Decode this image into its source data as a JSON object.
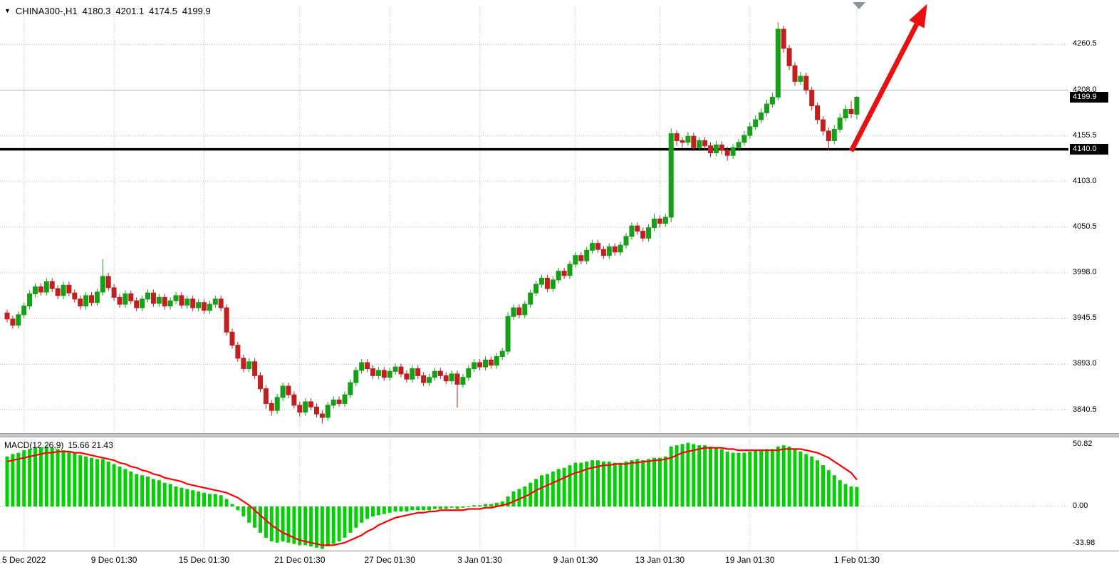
{
  "header": {
    "symbol_timeframe": "CHINA300-,H1",
    "open": "4180.3",
    "high": "4201.1",
    "low": "4174.5",
    "close": "4199.9"
  },
  "macd_panel": {
    "name": "MACD(12,26,9)",
    "values": "15.66 21.43"
  },
  "price_axis": {
    "current_price_badge": "4199.9",
    "line_badge": "4140.0"
  },
  "colors": {
    "bull": "#15a015",
    "bear": "#c21f1f",
    "macd_histogram": "#00cf00",
    "macd_signal": "#ff0000",
    "hline": "#000000",
    "resistance_line": "#9fb6c4",
    "grid": "#bdbdbd",
    "badge_bg": "#000000",
    "badge_text": "#ffffff",
    "arrow": "#e81010",
    "shift_marker": "#8795a5"
  },
  "chart_data": {
    "type": "candlestick",
    "title": "CHINA300-,H1",
    "ylim": [
      3814,
      4305
    ],
    "grid": "dotted",
    "horizontal_line": 4140.0,
    "resistance_line": 4208.0,
    "last_bar": {
      "open": 4180.3,
      "high": 4201.1,
      "low": 4174.5,
      "close": 4199.9
    },
    "y_ticks": [
      {
        "value": 4260.5,
        "label": "4260.5"
      },
      {
        "value": 4208.0,
        "label": "4208.0"
      },
      {
        "value": 4155.5,
        "label": "4155.5"
      },
      {
        "value": 4103.0,
        "label": "4103.0"
      },
      {
        "value": 4050.5,
        "label": "4050.5"
      },
      {
        "value": 3998.0,
        "label": "3998.0"
      },
      {
        "value": 3945.5,
        "label": "3945.5"
      },
      {
        "value": 3893.0,
        "label": "3893.0"
      },
      {
        "value": 3840.5,
        "label": "3840.5"
      }
    ],
    "x_ticks": [
      {
        "index": 3,
        "label": "5 Dec 2022"
      },
      {
        "index": 19,
        "label": "9 Dec 01:30"
      },
      {
        "index": 35,
        "label": "15 Dec 01:30"
      },
      {
        "index": 52,
        "label": "21 Dec 01:30"
      },
      {
        "index": 68,
        "label": "27 Dec 01:30"
      },
      {
        "index": 84,
        "label": "3 Jan 01:30"
      },
      {
        "index": 101,
        "label": "9 Jan 01:30"
      },
      {
        "index": 116,
        "label": "13 Jan 01:30"
      },
      {
        "index": 132,
        "label": "19 Jan 01:30"
      },
      {
        "index": 151,
        "label": "1 Feb 01:30"
      }
    ],
    "candles": [
      [
        3952,
        3956,
        3941,
        3945
      ],
      [
        3945,
        3949,
        3934,
        3938
      ],
      [
        3938,
        3954,
        3934,
        3950
      ],
      [
        3950,
        3964,
        3946,
        3960
      ],
      [
        3960,
        3978,
        3956,
        3974
      ],
      [
        3974,
        3986,
        3970,
        3982
      ],
      [
        3982,
        3986,
        3972,
        3976
      ],
      [
        3976,
        3992,
        3972,
        3988
      ],
      [
        3988,
        3992,
        3976,
        3980
      ],
      [
        3980,
        3984,
        3968,
        3972
      ],
      [
        3972,
        3988,
        3968,
        3984
      ],
      [
        3984,
        3988,
        3971,
        3975
      ],
      [
        3975,
        3979,
        3964,
        3968
      ],
      [
        3968,
        3972,
        3956,
        3960
      ],
      [
        3960,
        3976,
        3956,
        3972
      ],
      [
        3972,
        3976,
        3960,
        3964
      ],
      [
        3964,
        3980,
        3960,
        3976
      ],
      [
        3976,
        4014,
        3972,
        3994
      ],
      [
        3994,
        3998,
        3977,
        3981
      ],
      [
        3981,
        3985,
        3966,
        3970
      ],
      [
        3970,
        3974,
        3958,
        3962
      ],
      [
        3962,
        3978,
        3958,
        3974
      ],
      [
        3974,
        3978,
        3962,
        3966
      ],
      [
        3966,
        3970,
        3954,
        3958
      ],
      [
        3958,
        3972,
        3954,
        3968
      ],
      [
        3968,
        3979,
        3964,
        3975
      ],
      [
        3975,
        3979,
        3959,
        3963
      ],
      [
        3963,
        3974,
        3959,
        3970
      ],
      [
        3970,
        3974,
        3956,
        3960
      ],
      [
        3960,
        3970,
        3956,
        3966
      ],
      [
        3966,
        3976,
        3962,
        3972
      ],
      [
        3972,
        3976,
        3957,
        3961
      ],
      [
        3961,
        3972,
        3957,
        3968
      ],
      [
        3968,
        3972,
        3954,
        3958
      ],
      [
        3958,
        3968,
        3954,
        3964
      ],
      [
        3964,
        3968,
        3951,
        3955
      ],
      [
        3955,
        3966,
        3951,
        3962
      ],
      [
        3962,
        3972,
        3958,
        3968
      ],
      [
        3968,
        3972,
        3954,
        3958
      ],
      [
        3958,
        3962,
        3926,
        3930
      ],
      [
        3930,
        3934,
        3911,
        3915
      ],
      [
        3915,
        3919,
        3896,
        3900
      ],
      [
        3900,
        3904,
        3884,
        3888
      ],
      [
        3888,
        3900,
        3884,
        3896
      ],
      [
        3896,
        3900,
        3876,
        3880
      ],
      [
        3880,
        3884,
        3861,
        3865
      ],
      [
        3865,
        3869,
        3842,
        3848
      ],
      [
        3848,
        3852,
        3834,
        3840
      ],
      [
        3840,
        3859,
        3836,
        3855
      ],
      [
        3855,
        3872,
        3851,
        3868
      ],
      [
        3868,
        3872,
        3854,
        3858
      ],
      [
        3858,
        3862,
        3842,
        3846
      ],
      [
        3846,
        3850,
        3833,
        3838
      ],
      [
        3838,
        3854,
        3834,
        3850
      ],
      [
        3850,
        3854,
        3840,
        3844
      ],
      [
        3844,
        3848,
        3832,
        3836
      ],
      [
        3836,
        3840,
        3825,
        3832
      ],
      [
        3832,
        3850,
        3828,
        3846
      ],
      [
        3846,
        3856,
        3842,
        3852
      ],
      [
        3852,
        3856,
        3844,
        3848
      ],
      [
        3848,
        3862,
        3844,
        3858
      ],
      [
        3858,
        3876,
        3854,
        3872
      ],
      [
        3872,
        3890,
        3868,
        3886
      ],
      [
        3886,
        3899,
        3882,
        3895
      ],
      [
        3895,
        3899,
        3884,
        3888
      ],
      [
        3888,
        3892,
        3876,
        3880
      ],
      [
        3880,
        3890,
        3876,
        3886
      ],
      [
        3886,
        3890,
        3874,
        3878
      ],
      [
        3878,
        3889,
        3874,
        3885
      ],
      [
        3885,
        3894,
        3881,
        3890
      ],
      [
        3890,
        3894,
        3878,
        3882
      ],
      [
        3882,
        3886,
        3872,
        3876
      ],
      [
        3876,
        3892,
        3872,
        3888
      ],
      [
        3888,
        3892,
        3876,
        3880
      ],
      [
        3880,
        3884,
        3868,
        3872
      ],
      [
        3872,
        3882,
        3868,
        3878
      ],
      [
        3878,
        3889,
        3874,
        3885
      ],
      [
        3885,
        3889,
        3876,
        3880
      ],
      [
        3880,
        3884,
        3870,
        3874
      ],
      [
        3874,
        3886,
        3870,
        3882
      ],
      [
        3882,
        3886,
        3843,
        3870
      ],
      [
        3870,
        3882,
        3866,
        3878
      ],
      [
        3878,
        3892,
        3874,
        3888
      ],
      [
        3888,
        3899,
        3884,
        3895
      ],
      [
        3895,
        3899,
        3886,
        3890
      ],
      [
        3890,
        3902,
        3886,
        3898
      ],
      [
        3898,
        3902,
        3888,
        3892
      ],
      [
        3892,
        3906,
        3888,
        3902
      ],
      [
        3902,
        3912,
        3898,
        3908
      ],
      [
        3908,
        3953,
        3904,
        3948
      ],
      [
        3948,
        3962,
        3944,
        3958
      ],
      [
        3958,
        3962,
        3946,
        3950
      ],
      [
        3950,
        3966,
        3946,
        3962
      ],
      [
        3962,
        3979,
        3958,
        3975
      ],
      [
        3975,
        3989,
        3971,
        3985
      ],
      [
        3985,
        3996,
        3981,
        3992
      ],
      [
        3992,
        3996,
        3976,
        3980
      ],
      [
        3980,
        3994,
        3976,
        3990
      ],
      [
        3990,
        4004,
        3986,
        4000
      ],
      [
        4000,
        4004,
        3991,
        3995
      ],
      [
        3995,
        4012,
        3991,
        4008
      ],
      [
        4008,
        4022,
        4004,
        4018
      ],
      [
        4018,
        4022,
        4008,
        4012
      ],
      [
        4012,
        4028,
        4008,
        4024
      ],
      [
        4024,
        4036,
        4020,
        4032
      ],
      [
        4032,
        4036,
        4021,
        4025
      ],
      [
        4025,
        4029,
        4014,
        4018
      ],
      [
        4018,
        4032,
        4014,
        4028
      ],
      [
        4028,
        4032,
        4018,
        4022
      ],
      [
        4022,
        4034,
        4018,
        4030
      ],
      [
        4030,
        4044,
        4026,
        4040
      ],
      [
        4040,
        4056,
        4036,
        4052
      ],
      [
        4052,
        4056,
        4042,
        4046
      ],
      [
        4046,
        4050,
        4034,
        4038
      ],
      [
        4038,
        4054,
        4034,
        4050
      ],
      [
        4050,
        4066,
        4046,
        4060
      ],
      [
        4060,
        4064,
        4050,
        4055
      ],
      [
        4055,
        4066,
        4051,
        4062
      ],
      [
        4062,
        4164,
        4056,
        4158
      ],
      [
        4158,
        4162,
        4144,
        4150
      ],
      [
        4150,
        4154,
        4142,
        4148
      ],
      [
        4148,
        4160,
        4144,
        4155
      ],
      [
        4155,
        4159,
        4138,
        4142
      ],
      [
        4142,
        4154,
        4138,
        4150
      ],
      [
        4150,
        4154,
        4139,
        4144
      ],
      [
        4144,
        4148,
        4131,
        4136
      ],
      [
        4136,
        4150,
        4132,
        4145
      ],
      [
        4145,
        4149,
        4134,
        4139
      ],
      [
        4139,
        4143,
        4127,
        4133
      ],
      [
        4133,
        4146,
        4129,
        4142
      ],
      [
        4142,
        4152,
        4138,
        4148
      ],
      [
        4148,
        4161,
        4144,
        4156
      ],
      [
        4156,
        4171,
        4152,
        4166
      ],
      [
        4166,
        4179,
        4162,
        4174
      ],
      [
        4174,
        4187,
        4170,
        4182
      ],
      [
        4182,
        4197,
        4178,
        4192
      ],
      [
        4192,
        4205,
        4188,
        4200
      ],
      [
        4200,
        4286,
        4196,
        4278
      ],
      [
        4278,
        4282,
        4251,
        4256
      ],
      [
        4256,
        4260,
        4231,
        4236
      ],
      [
        4236,
        4240,
        4213,
        4218
      ],
      [
        4218,
        4229,
        4214,
        4224
      ],
      [
        4224,
        4228,
        4203,
        4208
      ],
      [
        4208,
        4212,
        4185,
        4190
      ],
      [
        4190,
        4194,
        4169,
        4174
      ],
      [
        4174,
        4178,
        4156,
        4161
      ],
      [
        4161,
        4165,
        4139,
        4150
      ],
      [
        4150,
        4168,
        4146,
        4163
      ],
      [
        4163,
        4181,
        4159,
        4176
      ],
      [
        4176,
        4191,
        4172,
        4186
      ],
      [
        4186,
        4196,
        4176,
        4181
      ],
      [
        4180.3,
        4201.1,
        4174.5,
        4199.9
      ]
    ],
    "macd": {
      "params": "12,26,9",
      "main_last": 15.66,
      "signal_last": 21.43,
      "ylim": [
        -34.8,
        54.2
      ],
      "y_ticks": [
        {
          "value": 50.82,
          "label": "50.82"
        },
        {
          "value": 0,
          "label": "0.00"
        },
        {
          "value": -33.98,
          "label": "-33.98"
        }
      ],
      "histogram": [
        40,
        42,
        43,
        45,
        46,
        47,
        47,
        48,
        47,
        46,
        45,
        44,
        43,
        41,
        40,
        39,
        38,
        38,
        36,
        34,
        32,
        30,
        28,
        26,
        25,
        24,
        22,
        21,
        19,
        18,
        16,
        15,
        14,
        13,
        12,
        11,
        10,
        10,
        9,
        6,
        2,
        -3,
        -8,
        -13,
        -17,
        -21,
        -25,
        -28,
        -29,
        -28,
        -29,
        -30,
        -31,
        -31,
        -32,
        -33,
        -34,
        -32,
        -30,
        -28,
        -25,
        -21,
        -17,
        -13,
        -10,
        -8,
        -7,
        -6,
        -5,
        -4,
        -4,
        -4,
        -3,
        -3,
        -3,
        -3,
        -2,
        -2,
        -2,
        -1,
        -2,
        -1,
        0,
        1,
        1,
        2,
        2,
        3,
        4,
        8,
        12,
        14,
        16,
        19,
        22,
        25,
        26,
        28,
        30,
        31,
        33,
        35,
        35,
        36,
        37,
        37,
        36,
        36,
        35,
        35,
        36,
        37,
        38,
        37,
        38,
        39,
        39,
        40,
        48,
        49,
        50,
        51,
        50,
        49,
        49,
        48,
        47,
        46,
        44,
        43,
        43,
        43,
        44,
        45,
        45,
        46,
        46,
        48,
        49,
        48,
        46,
        44,
        42,
        40,
        37,
        33,
        29,
        25,
        21,
        18,
        16,
        15.66
      ],
      "signal": [
        36,
        37,
        38,
        39,
        40,
        41,
        42,
        43,
        43,
        44,
        44,
        44,
        43,
        43,
        42,
        41,
        40,
        39,
        38,
        37,
        35,
        34,
        32,
        31,
        29,
        28,
        26,
        25,
        23,
        22,
        21,
        20,
        18,
        17,
        16,
        15,
        14,
        13,
        12,
        11,
        9,
        7,
        4,
        1,
        -3,
        -7,
        -11,
        -15,
        -18,
        -21,
        -23,
        -25,
        -27,
        -28,
        -29,
        -30,
        -31,
        -31,
        -31,
        -30,
        -29,
        -27,
        -25,
        -23,
        -20,
        -18,
        -15,
        -13,
        -11,
        -9,
        -8,
        -7,
        -6,
        -5,
        -5,
        -4,
        -4,
        -3,
        -3,
        -3,
        -3,
        -3,
        -2,
        -2,
        -2,
        -1,
        -1,
        0,
        1,
        2,
        4,
        6,
        8,
        10,
        13,
        15,
        17,
        19,
        21,
        23,
        25,
        27,
        28,
        30,
        31,
        32,
        33,
        33,
        34,
        34,
        34,
        35,
        35,
        36,
        36,
        37,
        37,
        38,
        39,
        41,
        43,
        44,
        45,
        46,
        47,
        47,
        47,
        47,
        46,
        46,
        45,
        45,
        45,
        45,
        45,
        45,
        45,
        45,
        46,
        46,
        46,
        46,
        45,
        44,
        43,
        41,
        39,
        36,
        33,
        30,
        27,
        21.43
      ]
    },
    "annotations": [
      {
        "type": "trend-arrow",
        "direction": "up",
        "from": {
          "index": 150,
          "price": 4138
        },
        "to": {
          "index": 163.5,
          "price": 4307
        }
      }
    ]
  }
}
